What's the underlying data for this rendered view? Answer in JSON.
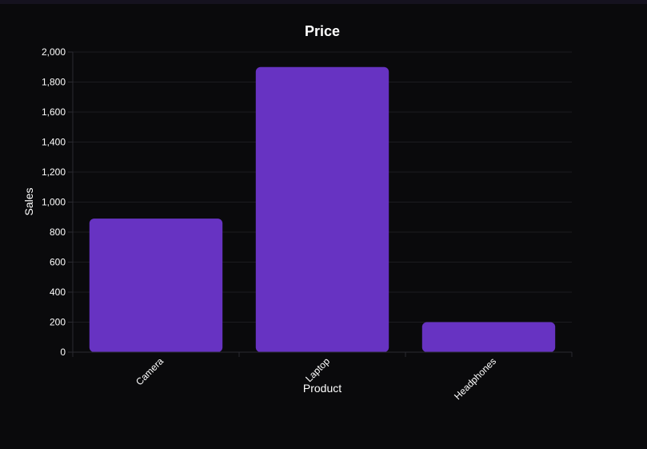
{
  "chart_data": {
    "type": "bar",
    "title": "Price",
    "xlabel": "Product",
    "ylabel": "Sales",
    "categories": [
      "Camera",
      "Laptop",
      "Headphones"
    ],
    "series": [
      {
        "values": [
          890,
          1900,
          200
        ]
      }
    ],
    "ylim": [
      0,
      2000
    ],
    "yticks": [
      "0",
      "200",
      "400",
      "600",
      "800",
      "1,000",
      "1,200",
      "1,400",
      "1,600",
      "1,800",
      "2,000"
    ],
    "ytick_values": [
      0,
      200,
      400,
      600,
      800,
      1000,
      1200,
      1400,
      1600,
      1800,
      2000
    ],
    "grid": true,
    "legend": "none",
    "colors": {
      "bar": "#6733c2",
      "background": "#0a0a0c",
      "grid": "#1c1c20",
      "axis": "#2a2a30",
      "text": "#ffffff"
    }
  }
}
